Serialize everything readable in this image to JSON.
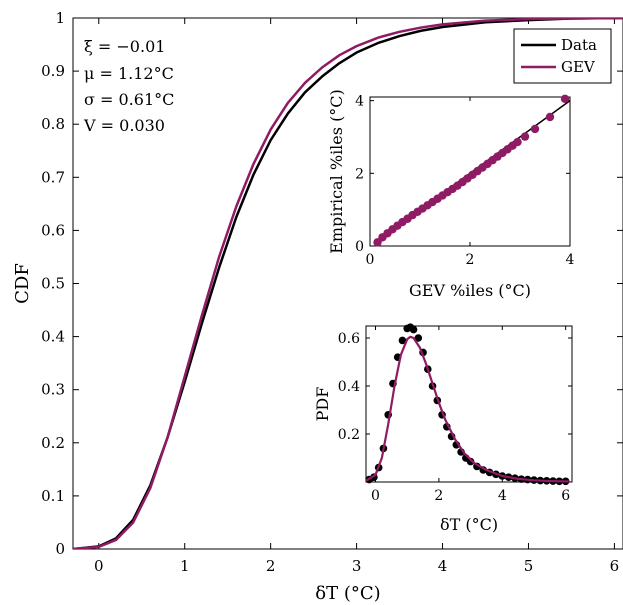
{
  "colors": {
    "data": "#000000",
    "gev": "#8e1b63",
    "frame": "#000000"
  },
  "chart_data": [
    {
      "type": "line",
      "role": "main",
      "xlabel": "δT (°C)",
      "ylabel": "CDF",
      "xlim": [
        -0.3,
        6.1
      ],
      "ylim": [
        0,
        1
      ],
      "xticks": [
        0,
        1,
        2,
        3,
        4,
        5,
        6
      ],
      "xtick_labels": [
        "0",
        "1",
        "2",
        "3",
        "4",
        "5",
        "6"
      ],
      "yticks": [
        0,
        0.1,
        0.2,
        0.3,
        0.4,
        0.5,
        0.6,
        0.7,
        0.8,
        0.9,
        1
      ],
      "ytick_labels": [
        "0",
        "0.1",
        "0.2",
        "0.3",
        "0.4",
        "0.5",
        "0.6",
        "0.7",
        "0.8",
        "0.9",
        "1"
      ],
      "grid": false,
      "legend": "top-right",
      "annotations": [
        "ξ = −0.01",
        "μ = 1.12°C",
        "σ = 0.61°C",
        "V = 0.030"
      ],
      "series": [
        {
          "name": "Data",
          "x": [
            -0.3,
            0.0,
            0.2,
            0.4,
            0.6,
            0.8,
            1.0,
            1.2,
            1.4,
            1.6,
            1.8,
            2.0,
            2.2,
            2.4,
            2.6,
            2.8,
            3.0,
            3.25,
            3.5,
            3.75,
            4.0,
            4.5,
            5.0,
            5.5,
            6.1
          ],
          "y": [
            0.0,
            0.005,
            0.02,
            0.055,
            0.12,
            0.21,
            0.315,
            0.425,
            0.53,
            0.625,
            0.705,
            0.77,
            0.82,
            0.86,
            0.89,
            0.915,
            0.935,
            0.953,
            0.966,
            0.976,
            0.983,
            0.992,
            0.996,
            0.999,
            1.0
          ]
        },
        {
          "name": "GEV",
          "x": [
            -0.3,
            0.0,
            0.2,
            0.4,
            0.6,
            0.8,
            1.0,
            1.2,
            1.4,
            1.6,
            1.8,
            2.0,
            2.2,
            2.4,
            2.6,
            2.8,
            3.0,
            3.25,
            3.5,
            3.75,
            4.0,
            4.5,
            5.0,
            5.5,
            6.1
          ],
          "y": [
            0.0,
            0.004,
            0.017,
            0.05,
            0.115,
            0.21,
            0.325,
            0.44,
            0.55,
            0.645,
            0.725,
            0.79,
            0.84,
            0.878,
            0.907,
            0.93,
            0.947,
            0.963,
            0.974,
            0.982,
            0.988,
            0.995,
            0.998,
            0.999,
            1.0
          ]
        }
      ]
    },
    {
      "type": "scatter",
      "role": "inset-qq",
      "xlabel": "GEV %iles (°C)",
      "ylabel": "Empirical %iles (°C)",
      "xlim": [
        0,
        4
      ],
      "ylim": [
        0,
        4.1
      ],
      "xticks": [
        0,
        2,
        4
      ],
      "xtick_labels": [
        "0",
        "2",
        "4"
      ],
      "yticks": [
        0,
        2,
        4
      ],
      "ytick_labels": [
        "0",
        "2",
        "4"
      ],
      "reference_line": {
        "x": [
          0.1,
          4.0
        ],
        "y": [
          0.1,
          4.0
        ]
      },
      "points": {
        "x": [
          0.15,
          0.25,
          0.35,
          0.45,
          0.55,
          0.65,
          0.75,
          0.85,
          0.95,
          1.05,
          1.15,
          1.25,
          1.35,
          1.45,
          1.55,
          1.65,
          1.75,
          1.85,
          1.95,
          2.05,
          2.15,
          2.25,
          2.35,
          2.45,
          2.55,
          2.65,
          2.75,
          2.85,
          2.95,
          3.1,
          3.3,
          3.6,
          3.9
        ],
        "y": [
          0.1,
          0.24,
          0.35,
          0.46,
          0.56,
          0.66,
          0.75,
          0.85,
          0.94,
          1.03,
          1.12,
          1.21,
          1.3,
          1.39,
          1.48,
          1.57,
          1.66,
          1.76,
          1.86,
          1.96,
          2.06,
          2.16,
          2.26,
          2.36,
          2.46,
          2.56,
          2.66,
          2.76,
          2.86,
          3.01,
          3.22,
          3.55,
          4.05
        ]
      }
    },
    {
      "type": "line",
      "role": "inset-pdf",
      "xlabel": "δT (°C)",
      "ylabel": "PDF",
      "xlim": [
        -0.3,
        6.2
      ],
      "ylim": [
        0,
        0.65
      ],
      "xticks": [
        0,
        2,
        4,
        6
      ],
      "xtick_labels": [
        "0",
        "2",
        "4",
        "6"
      ],
      "yticks": [
        0.2,
        0.4,
        0.6
      ],
      "ytick_labels": [
        "0.2",
        "0.4",
        "0.6"
      ],
      "series": [
        {
          "name": "GEV",
          "x": [
            -0.3,
            0.0,
            0.2,
            0.4,
            0.6,
            0.8,
            1.0,
            1.1,
            1.2,
            1.4,
            1.6,
            1.8,
            2.0,
            2.2,
            2.5,
            2.8,
            3.1,
            3.5,
            4.0,
            4.5,
            5.0,
            5.5,
            6.1
          ],
          "y": [
            0.005,
            0.03,
            0.1,
            0.24,
            0.4,
            0.53,
            0.595,
            0.605,
            0.6,
            0.56,
            0.49,
            0.41,
            0.33,
            0.26,
            0.18,
            0.12,
            0.08,
            0.05,
            0.025,
            0.013,
            0.007,
            0.004,
            0.002
          ]
        }
      ],
      "points": {
        "x": [
          -0.2,
          -0.05,
          0.1,
          0.25,
          0.4,
          0.55,
          0.7,
          0.85,
          1.0,
          1.1,
          1.2,
          1.35,
          1.5,
          1.65,
          1.8,
          1.95,
          2.1,
          2.25,
          2.4,
          2.55,
          2.7,
          2.85,
          3.0,
          3.2,
          3.4,
          3.6,
          3.8,
          4.0,
          4.2,
          4.4,
          4.6,
          4.8,
          5.0,
          5.2,
          5.4,
          5.6,
          5.8,
          6.0
        ],
        "y": [
          0.01,
          0.02,
          0.06,
          0.14,
          0.28,
          0.41,
          0.52,
          0.59,
          0.64,
          0.645,
          0.635,
          0.6,
          0.54,
          0.47,
          0.4,
          0.34,
          0.28,
          0.23,
          0.19,
          0.155,
          0.125,
          0.1,
          0.085,
          0.065,
          0.05,
          0.04,
          0.032,
          0.025,
          0.02,
          0.016,
          0.012,
          0.01,
          0.008,
          0.006,
          0.005,
          0.004,
          0.003,
          0.003
        ]
      }
    }
  ]
}
